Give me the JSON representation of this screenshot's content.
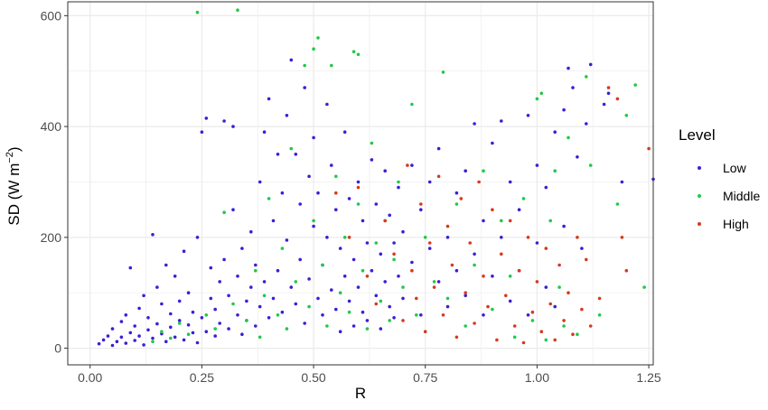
{
  "chart_data": {
    "type": "scatter",
    "title": "",
    "xlabel": "R",
    "ylabel": {
      "main": "SD (W m",
      "superscript": "−2",
      "close": ")"
    },
    "xlim": [
      -0.05,
      1.26
    ],
    "ylim": [
      -30,
      625
    ],
    "x_ticks": [
      0.0,
      0.25,
      0.5,
      0.75,
      1.0,
      1.25
    ],
    "x_tick_labels": [
      "0.00",
      "0.25",
      "0.50",
      "0.75",
      "1.00",
      "1.25"
    ],
    "y_ticks": [
      0,
      200,
      400,
      600
    ],
    "y_tick_labels": [
      "0",
      "200",
      "400",
      "600"
    ],
    "grid": true,
    "legend": {
      "title": "Level",
      "placement": "right",
      "entries": [
        "Low",
        "Middle",
        "High"
      ]
    },
    "colors": {
      "Low": "#3b1fd6",
      "Middle": "#22c84a",
      "High": "#d63a1f",
      "panel_border": "#333333",
      "grid": "#ebebeb"
    },
    "series": [
      {
        "name": "Low",
        "points": [
          [
            0.02,
            8
          ],
          [
            0.03,
            15
          ],
          [
            0.04,
            22
          ],
          [
            0.05,
            5
          ],
          [
            0.05,
            35
          ],
          [
            0.06,
            12
          ],
          [
            0.07,
            48
          ],
          [
            0.07,
            20
          ],
          [
            0.08,
            9
          ],
          [
            0.08,
            60
          ],
          [
            0.09,
            28
          ],
          [
            0.09,
            145
          ],
          [
            0.1,
            14
          ],
          [
            0.1,
            40
          ],
          [
            0.11,
            72
          ],
          [
            0.11,
            22
          ],
          [
            0.12,
            6
          ],
          [
            0.12,
            95
          ],
          [
            0.13,
            33
          ],
          [
            0.13,
            55
          ],
          [
            0.14,
            18
          ],
          [
            0.14,
            205
          ],
          [
            0.15,
            44
          ],
          [
            0.15,
            110
          ],
          [
            0.16,
            26
          ],
          [
            0.16,
            80
          ],
          [
            0.17,
            12
          ],
          [
            0.17,
            150
          ],
          [
            0.18,
            38
          ],
          [
            0.18,
            62
          ],
          [
            0.19,
            20
          ],
          [
            0.19,
            130
          ],
          [
            0.2,
            50
          ],
          [
            0.2,
            85
          ],
          [
            0.21,
            15
          ],
          [
            0.21,
            175
          ],
          [
            0.22,
            42
          ],
          [
            0.22,
            100
          ],
          [
            0.23,
            28
          ],
          [
            0.23,
            65
          ],
          [
            0.24,
            10
          ],
          [
            0.24,
            200
          ],
          [
            0.25,
            390
          ],
          [
            0.25,
            55
          ],
          [
            0.26,
            415
          ],
          [
            0.26,
            30
          ],
          [
            0.27,
            90
          ],
          [
            0.27,
            145
          ],
          [
            0.28,
            22
          ],
          [
            0.28,
            70
          ],
          [
            0.29,
            120
          ],
          [
            0.29,
            45
          ],
          [
            0.3,
            410
          ],
          [
            0.3,
            160
          ],
          [
            0.31,
            35
          ],
          [
            0.31,
            95
          ],
          [
            0.32,
            400
          ],
          [
            0.32,
            250
          ],
          [
            0.33,
            60
          ],
          [
            0.33,
            130
          ],
          [
            0.34,
            25
          ],
          [
            0.34,
            180
          ],
          [
            0.35,
            85
          ],
          [
            0.35,
            50
          ],
          [
            0.36,
            210
          ],
          [
            0.36,
            110
          ],
          [
            0.37,
            40
          ],
          [
            0.37,
            150
          ],
          [
            0.38,
            300
          ],
          [
            0.38,
            75
          ],
          [
            0.39,
            390
          ],
          [
            0.39,
            120
          ],
          [
            0.4,
            450
          ],
          [
            0.4,
            55
          ],
          [
            0.41,
            230
          ],
          [
            0.41,
            90
          ],
          [
            0.42,
            350
          ],
          [
            0.42,
            140
          ],
          [
            0.43,
            280
          ],
          [
            0.43,
            65
          ],
          [
            0.44,
            195
          ],
          [
            0.44,
            420
          ],
          [
            0.45,
            520
          ],
          [
            0.45,
            110
          ],
          [
            0.46,
            350
          ],
          [
            0.46,
            80
          ],
          [
            0.47,
            260
          ],
          [
            0.47,
            160
          ],
          [
            0.48,
            470
          ],
          [
            0.48,
            45
          ],
          [
            0.49,
            310
          ],
          [
            0.49,
            125
          ],
          [
            0.5,
            380
          ],
          [
            0.5,
            220
          ],
          [
            0.51,
            90
          ],
          [
            0.51,
            280
          ],
          [
            0.52,
            150
          ],
          [
            0.52,
            60
          ],
          [
            0.53,
            440
          ],
          [
            0.53,
            200
          ],
          [
            0.54,
            105
          ],
          [
            0.54,
            330
          ],
          [
            0.55,
            70
          ],
          [
            0.55,
            250
          ],
          [
            0.56,
            180
          ],
          [
            0.56,
            30
          ],
          [
            0.57,
            390
          ],
          [
            0.57,
            130
          ],
          [
            0.58,
            85
          ],
          [
            0.58,
            270
          ],
          [
            0.59,
            40
          ],
          [
            0.59,
            160
          ],
          [
            0.6,
            300
          ],
          [
            0.6,
            110
          ],
          [
            0.61,
            65
          ],
          [
            0.61,
            230
          ],
          [
            0.62,
            190
          ],
          [
            0.62,
            50
          ],
          [
            0.63,
            340
          ],
          [
            0.63,
            140
          ],
          [
            0.64,
            95
          ],
          [
            0.64,
            260
          ],
          [
            0.65,
            170
          ],
          [
            0.65,
            35
          ],
          [
            0.66,
            320
          ],
          [
            0.66,
            120
          ],
          [
            0.67,
            75
          ],
          [
            0.67,
            240
          ],
          [
            0.68,
            190
          ],
          [
            0.68,
            55
          ],
          [
            0.69,
            290
          ],
          [
            0.69,
            130
          ],
          [
            0.7,
            210
          ],
          [
            0.7,
            90
          ],
          [
            0.72,
            155
          ],
          [
            0.72,
            330
          ],
          [
            0.74,
            60
          ],
          [
            0.74,
            250
          ],
          [
            0.76,
            180
          ],
          [
            0.76,
            300
          ],
          [
            0.78,
            120
          ],
          [
            0.78,
            360
          ],
          [
            0.8,
            200
          ],
          [
            0.8,
            75
          ],
          [
            0.82,
            280
          ],
          [
            0.82,
            140
          ],
          [
            0.84,
            320
          ],
          [
            0.84,
            95
          ],
          [
            0.86,
            405
          ],
          [
            0.86,
            170
          ],
          [
            0.88,
            230
          ],
          [
            0.88,
            60
          ],
          [
            0.9,
            370
          ],
          [
            0.9,
            130
          ],
          [
            0.92,
            410
          ],
          [
            0.92,
            200
          ],
          [
            0.94,
            300
          ],
          [
            0.94,
            85
          ],
          [
            0.96,
            250
          ],
          [
            0.96,
            140
          ],
          [
            0.98,
            420
          ],
          [
            0.98,
            60
          ],
          [
            1.0,
            330
          ],
          [
            1.0,
            190
          ],
          [
            1.02,
            110
          ],
          [
            1.02,
            290
          ],
          [
            1.04,
            390
          ],
          [
            1.04,
            75
          ],
          [
            1.06,
            220
          ],
          [
            1.06,
            430
          ],
          [
            1.07,
            505
          ],
          [
            1.08,
            470
          ],
          [
            1.09,
            345
          ],
          [
            1.1,
            180
          ],
          [
            1.11,
            405
          ],
          [
            1.12,
            512
          ],
          [
            1.15,
            440
          ],
          [
            1.16,
            460
          ],
          [
            1.19,
            300
          ],
          [
            1.26,
            305
          ]
        ]
      },
      {
        "name": "Middle",
        "points": [
          [
            0.14,
            12
          ],
          [
            0.16,
            30
          ],
          [
            0.18,
            18
          ],
          [
            0.2,
            45
          ],
          [
            0.22,
            25
          ],
          [
            0.24,
            606
          ],
          [
            0.26,
            60
          ],
          [
            0.28,
            35
          ],
          [
            0.3,
            245
          ],
          [
            0.32,
            80
          ],
          [
            0.33,
            610
          ],
          [
            0.35,
            50
          ],
          [
            0.37,
            140
          ],
          [
            0.38,
            20
          ],
          [
            0.39,
            95
          ],
          [
            0.4,
            270
          ],
          [
            0.42,
            60
          ],
          [
            0.43,
            180
          ],
          [
            0.44,
            35
          ],
          [
            0.45,
            360
          ],
          [
            0.46,
            120
          ],
          [
            0.48,
            510
          ],
          [
            0.49,
            75
          ],
          [
            0.5,
            540
          ],
          [
            0.5,
            230
          ],
          [
            0.51,
            560
          ],
          [
            0.52,
            150
          ],
          [
            0.53,
            40
          ],
          [
            0.54,
            510
          ],
          [
            0.55,
            310
          ],
          [
            0.56,
            100
          ],
          [
            0.57,
            200
          ],
          [
            0.58,
            65
          ],
          [
            0.59,
            535
          ],
          [
            0.6,
            530
          ],
          [
            0.6,
            260
          ],
          [
            0.61,
            140
          ],
          [
            0.62,
            35
          ],
          [
            0.63,
            370
          ],
          [
            0.64,
            190
          ],
          [
            0.65,
            85
          ],
          [
            0.66,
            230
          ],
          [
            0.67,
            50
          ],
          [
            0.68,
            160
          ],
          [
            0.69,
            300
          ],
          [
            0.7,
            110
          ],
          [
            0.72,
            440
          ],
          [
            0.73,
            60
          ],
          [
            0.75,
            200
          ],
          [
            0.77,
            120
          ],
          [
            0.79,
            498
          ],
          [
            0.8,
            90
          ],
          [
            0.82,
            260
          ],
          [
            0.84,
            40
          ],
          [
            0.86,
            150
          ],
          [
            0.88,
            320
          ],
          [
            0.9,
            70
          ],
          [
            0.92,
            230
          ],
          [
            0.94,
            130
          ],
          [
            0.95,
            20
          ],
          [
            0.97,
            270
          ],
          [
            0.99,
            50
          ],
          [
            1.0,
            450
          ],
          [
            1.01,
            460
          ],
          [
            1.02,
            15
          ],
          [
            1.03,
            230
          ],
          [
            1.04,
            320
          ],
          [
            1.05,
            110
          ],
          [
            1.06,
            40
          ],
          [
            1.07,
            380
          ],
          [
            1.09,
            25
          ],
          [
            1.11,
            490
          ],
          [
            1.12,
            330
          ],
          [
            1.14,
            60
          ],
          [
            1.18,
            260
          ],
          [
            1.2,
            420
          ],
          [
            1.22,
            475
          ],
          [
            1.24,
            110
          ]
        ]
      },
      {
        "name": "High",
        "points": [
          [
            0.55,
            280
          ],
          [
            0.58,
            200
          ],
          [
            0.6,
            290
          ],
          [
            0.62,
            130
          ],
          [
            0.64,
            80
          ],
          [
            0.66,
            230
          ],
          [
            0.68,
            170
          ],
          [
            0.7,
            50
          ],
          [
            0.71,
            330
          ],
          [
            0.72,
            140
          ],
          [
            0.73,
            90
          ],
          [
            0.74,
            260
          ],
          [
            0.75,
            30
          ],
          [
            0.76,
            190
          ],
          [
            0.77,
            110
          ],
          [
            0.78,
            310
          ],
          [
            0.79,
            60
          ],
          [
            0.8,
            220
          ],
          [
            0.81,
            150
          ],
          [
            0.82,
            20
          ],
          [
            0.83,
            270
          ],
          [
            0.84,
            100
          ],
          [
            0.85,
            190
          ],
          [
            0.86,
            45
          ],
          [
            0.87,
            300
          ],
          [
            0.88,
            130
          ],
          [
            0.89,
            75
          ],
          [
            0.9,
            250
          ],
          [
            0.91,
            15
          ],
          [
            0.92,
            170
          ],
          [
            0.93,
            95
          ],
          [
            0.94,
            230
          ],
          [
            0.95,
            40
          ],
          [
            0.96,
            140
          ],
          [
            0.97,
            10
          ],
          [
            0.98,
            200
          ],
          [
            0.99,
            65
          ],
          [
            1.0,
            120
          ],
          [
            1.01,
            30
          ],
          [
            1.02,
            180
          ],
          [
            1.03,
            80
          ],
          [
            1.04,
            15
          ],
          [
            1.05,
            150
          ],
          [
            1.06,
            50
          ],
          [
            1.07,
            100
          ],
          [
            1.08,
            25
          ],
          [
            1.09,
            200
          ],
          [
            1.1,
            70
          ],
          [
            1.11,
            160
          ],
          [
            1.12,
            40
          ],
          [
            1.14,
            90
          ],
          [
            1.16,
            470
          ],
          [
            1.18,
            450
          ],
          [
            1.19,
            200
          ],
          [
            1.2,
            140
          ],
          [
            1.25,
            360
          ]
        ]
      }
    ]
  }
}
